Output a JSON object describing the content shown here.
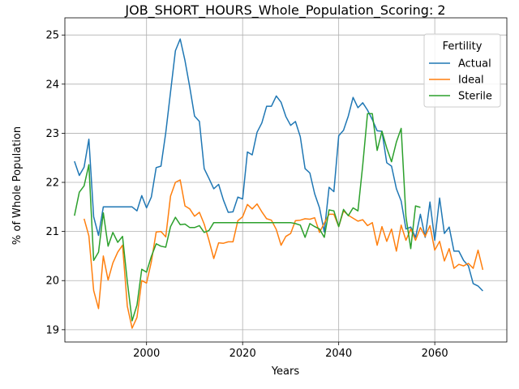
{
  "chart_data": {
    "type": "line",
    "title": "JOB_SHORT_HOURS_Whole_Population_Scoring: 2",
    "xlabel": "Years",
    "ylabel": "% of Whole Population",
    "xlim": [
      1983,
      2075
    ],
    "ylim": [
      18.75,
      25.35
    ],
    "xticks": [
      2000,
      2020,
      2040,
      2060
    ],
    "yticks": [
      19,
      20,
      21,
      22,
      23,
      24,
      25
    ],
    "grid": true,
    "legend": {
      "title": "Fertility",
      "placement": "top-right"
    },
    "colors": {
      "Actual": "#1f77b4",
      "Ideal": "#ff7f0e",
      "Sterile": "#2ca02c"
    },
    "series": [
      {
        "name": "Actual",
        "x": [
          1985,
          1986,
          1987,
          1988,
          1989,
          1990,
          1991,
          1992,
          1993,
          1994,
          1995,
          1996,
          1997,
          1998,
          1999,
          2000,
          2001,
          2002,
          2003,
          2004,
          2005,
          2006,
          2007,
          2008,
          2009,
          2010,
          2011,
          2012,
          2013,
          2014,
          2015,
          2016,
          2017,
          2018,
          2019,
          2020,
          2021,
          2022,
          2023,
          2024,
          2025,
          2026,
          2027,
          2028,
          2029,
          2030,
          2031,
          2032,
          2033,
          2034,
          2035,
          2036,
          2037,
          2038,
          2039,
          2040,
          2041,
          2042,
          2043,
          2044,
          2045,
          2046,
          2047,
          2048,
          2049,
          2050,
          2051,
          2052,
          2053,
          2054,
          2055,
          2056,
          2057,
          2058,
          2059,
          2060,
          2061,
          2062,
          2063,
          2064,
          2065,
          2066,
          2067,
          2068,
          2069,
          2070
        ],
        "y": [
          22.43,
          22.14,
          22.31,
          22.88,
          21.3,
          20.92,
          21.5,
          21.5,
          21.5,
          21.5,
          21.5,
          21.5,
          21.5,
          21.42,
          21.73,
          21.48,
          21.7,
          22.3,
          22.33,
          23.01,
          23.84,
          24.68,
          24.92,
          24.48,
          23.94,
          23.35,
          23.24,
          22.28,
          22.08,
          21.87,
          21.96,
          21.64,
          21.39,
          21.4,
          21.7,
          21.66,
          22.62,
          22.56,
          23.02,
          23.21,
          23.55,
          23.55,
          23.76,
          23.63,
          23.34,
          23.16,
          23.24,
          22.93,
          22.28,
          22.19,
          21.77,
          21.48,
          20.99,
          21.9,
          21.81,
          22.95,
          23.06,
          23.35,
          23.73,
          23.52,
          23.62,
          23.47,
          23.28,
          23.05,
          23.04,
          22.4,
          22.33,
          21.87,
          21.62,
          21.05,
          21.09,
          20.88,
          21.35,
          20.88,
          21.6,
          20.82,
          21.68,
          20.96,
          21.09,
          20.6,
          20.6,
          20.41,
          20.3,
          19.94,
          19.89,
          19.79
        ]
      },
      {
        "name": "Ideal",
        "x": [
          1987,
          1988,
          1989,
          1990,
          1991,
          1992,
          1993,
          1994,
          1995,
          1996,
          1997,
          1998,
          1999,
          2000,
          2001,
          2002,
          2003,
          2004,
          2005,
          2006,
          2007,
          2008,
          2009,
          2010,
          2011,
          2012,
          2013,
          2014,
          2015,
          2016,
          2017,
          2018,
          2019,
          2020,
          2021,
          2022,
          2023,
          2024,
          2025,
          2026,
          2027,
          2028,
          2029,
          2030,
          2031,
          2032,
          2033,
          2034,
          2035,
          2036,
          2037,
          2038,
          2039,
          2040,
          2041,
          2042,
          2043,
          2044,
          2045,
          2046,
          2047,
          2048,
          2049,
          2050,
          2051,
          2052,
          2053,
          2054,
          2055,
          2056,
          2057,
          2058,
          2059,
          2060,
          2061,
          2062,
          2063,
          2064,
          2065,
          2066,
          2067,
          2068,
          2069,
          2070
        ],
        "y": [
          21.26,
          20.91,
          19.8,
          19.43,
          20.5,
          20.01,
          20.36,
          20.58,
          20.72,
          19.48,
          19.03,
          19.25,
          20.0,
          19.95,
          20.38,
          20.99,
          21.0,
          20.89,
          21.72,
          22.0,
          22.05,
          21.52,
          21.46,
          21.31,
          21.39,
          21.15,
          20.82,
          20.45,
          20.77,
          20.76,
          20.79,
          20.79,
          21.22,
          21.3,
          21.55,
          21.46,
          21.56,
          21.4,
          21.26,
          21.23,
          21.04,
          20.72,
          20.9,
          20.96,
          21.22,
          21.23,
          21.26,
          21.25,
          21.28,
          20.98,
          21.17,
          21.35,
          21.35,
          21.1,
          21.42,
          21.33,
          21.27,
          21.21,
          21.24,
          21.12,
          21.18,
          20.72,
          21.1,
          20.8,
          21.05,
          20.6,
          21.13,
          20.82,
          21.05,
          20.82,
          21.08,
          20.9,
          21.12,
          20.62,
          20.8,
          20.4,
          20.65,
          20.25,
          20.33,
          20.3,
          20.35,
          20.25,
          20.62,
          20.22
        ]
      },
      {
        "name": "Sterile",
        "x": [
          1985,
          1986,
          1987,
          1988,
          1989,
          1990,
          1991,
          1992,
          1993,
          1994,
          1995,
          1996,
          1997,
          1998,
          1999,
          2000,
          2001,
          2002,
          2003,
          2004,
          2005,
          2006,
          2007,
          2008,
          2009,
          2010,
          2011,
          2012,
          2013,
          2014,
          2015,
          2016,
          2017,
          2018,
          2019,
          2020,
          2021,
          2022,
          2023,
          2024,
          2025,
          2026,
          2027,
          2028,
          2029,
          2030,
          2031,
          2032,
          2033,
          2034,
          2035,
          2036,
          2037,
          2038,
          2039,
          2040,
          2041,
          2042,
          2043,
          2044,
          2045,
          2046,
          2047,
          2048,
          2049,
          2050,
          2051,
          2052,
          2053,
          2054,
          2055,
          2056,
          2057
        ],
        "y": [
          21.32,
          21.8,
          21.93,
          22.36,
          20.41,
          20.58,
          21.38,
          20.7,
          20.98,
          20.78,
          20.9,
          19.98,
          19.18,
          19.5,
          20.23,
          20.17,
          20.49,
          20.75,
          20.7,
          20.68,
          21.1,
          21.29,
          21.14,
          21.15,
          21.08,
          21.08,
          21.12,
          20.98,
          21.02,
          21.18,
          21.18,
          21.18,
          21.18,
          21.18,
          21.18,
          21.18,
          21.18,
          21.18,
          21.18,
          21.18,
          21.18,
          21.18,
          21.18,
          21.18,
          21.18,
          21.18,
          21.16,
          21.13,
          20.88,
          21.16,
          21.1,
          21.05,
          20.88,
          21.44,
          21.42,
          21.1,
          21.45,
          21.32,
          21.48,
          21.42,
          22.35,
          23.4,
          23.4,
          22.65,
          23.04,
          22.7,
          22.42,
          22.82,
          23.1,
          21.3,
          20.65,
          21.52,
          21.49
        ]
      }
    ]
  }
}
